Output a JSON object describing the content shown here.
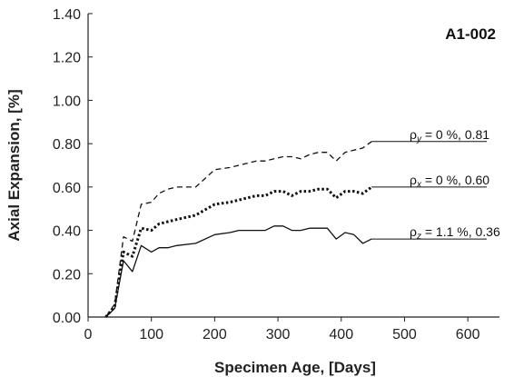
{
  "chart_data": {
    "type": "line",
    "panel_label": "A1-002",
    "xlabel": "Specimen Age, [Days]",
    "ylabel": "Axial Expansion, [%]",
    "xlim": [
      0,
      650
    ],
    "ylim": [
      0,
      1.4
    ],
    "xticks": [
      0,
      100,
      200,
      300,
      400,
      500,
      600
    ],
    "yticks": [
      0,
      0.2,
      0.4,
      0.6,
      0.8,
      1.0,
      1.2,
      1.4
    ],
    "xtick_labels": [
      "0",
      "100",
      "200",
      "300",
      "400",
      "500",
      "600"
    ],
    "ytick_labels": [
      "0.00",
      "0.20",
      "0.40",
      "0.60",
      "0.80",
      "1.00",
      "1.20",
      "1.40"
    ],
    "grid": false,
    "series": [
      {
        "key": "y",
        "style": "dashed",
        "color": "#111111",
        "label_main": "ρ",
        "label_sub": "y",
        "label_rest": " = 0 %,  0.81",
        "x": [
          28,
          42,
          56,
          70,
          84,
          100,
          112,
          126,
          140,
          170,
          200,
          224,
          238,
          252,
          266,
          280,
          294,
          308,
          322,
          336,
          350,
          364,
          378,
          392,
          406,
          420,
          434,
          448
        ],
        "y": [
          0.0,
          0.06,
          0.37,
          0.35,
          0.52,
          0.53,
          0.57,
          0.59,
          0.6,
          0.6,
          0.68,
          0.69,
          0.7,
          0.71,
          0.72,
          0.72,
          0.73,
          0.74,
          0.74,
          0.73,
          0.75,
          0.76,
          0.76,
          0.72,
          0.76,
          0.77,
          0.78,
          0.81
        ]
      },
      {
        "key": "x",
        "style": "dotted",
        "color": "#111111",
        "label_main": "ρ",
        "label_sub": "x",
        "label_rest": " = 0 %,  0.60",
        "x": [
          28,
          42,
          56,
          70,
          84,
          100,
          112,
          126,
          140,
          170,
          200,
          224,
          238,
          252,
          266,
          280,
          294,
          308,
          322,
          336,
          350,
          364,
          378,
          392,
          406,
          420,
          434,
          448
        ],
        "y": [
          0.0,
          0.05,
          0.3,
          0.28,
          0.41,
          0.4,
          0.43,
          0.44,
          0.45,
          0.47,
          0.52,
          0.53,
          0.54,
          0.55,
          0.56,
          0.56,
          0.58,
          0.58,
          0.56,
          0.58,
          0.58,
          0.59,
          0.59,
          0.55,
          0.58,
          0.58,
          0.57,
          0.6
        ]
      },
      {
        "key": "z",
        "style": "solid",
        "color": "#111111",
        "label_main": "ρ",
        "label_sub": "z",
        "label_rest": " = 1.1 %,  0.36",
        "x": [
          28,
          42,
          56,
          70,
          84,
          100,
          112,
          126,
          140,
          170,
          200,
          224,
          238,
          252,
          266,
          280,
          294,
          308,
          322,
          336,
          350,
          364,
          378,
          392,
          406,
          420,
          434,
          448
        ],
        "y": [
          0.0,
          0.04,
          0.26,
          0.21,
          0.33,
          0.3,
          0.32,
          0.32,
          0.33,
          0.34,
          0.38,
          0.39,
          0.4,
          0.4,
          0.4,
          0.4,
          0.42,
          0.42,
          0.4,
          0.4,
          0.41,
          0.41,
          0.41,
          0.36,
          0.39,
          0.38,
          0.34,
          0.36
        ]
      }
    ]
  }
}
